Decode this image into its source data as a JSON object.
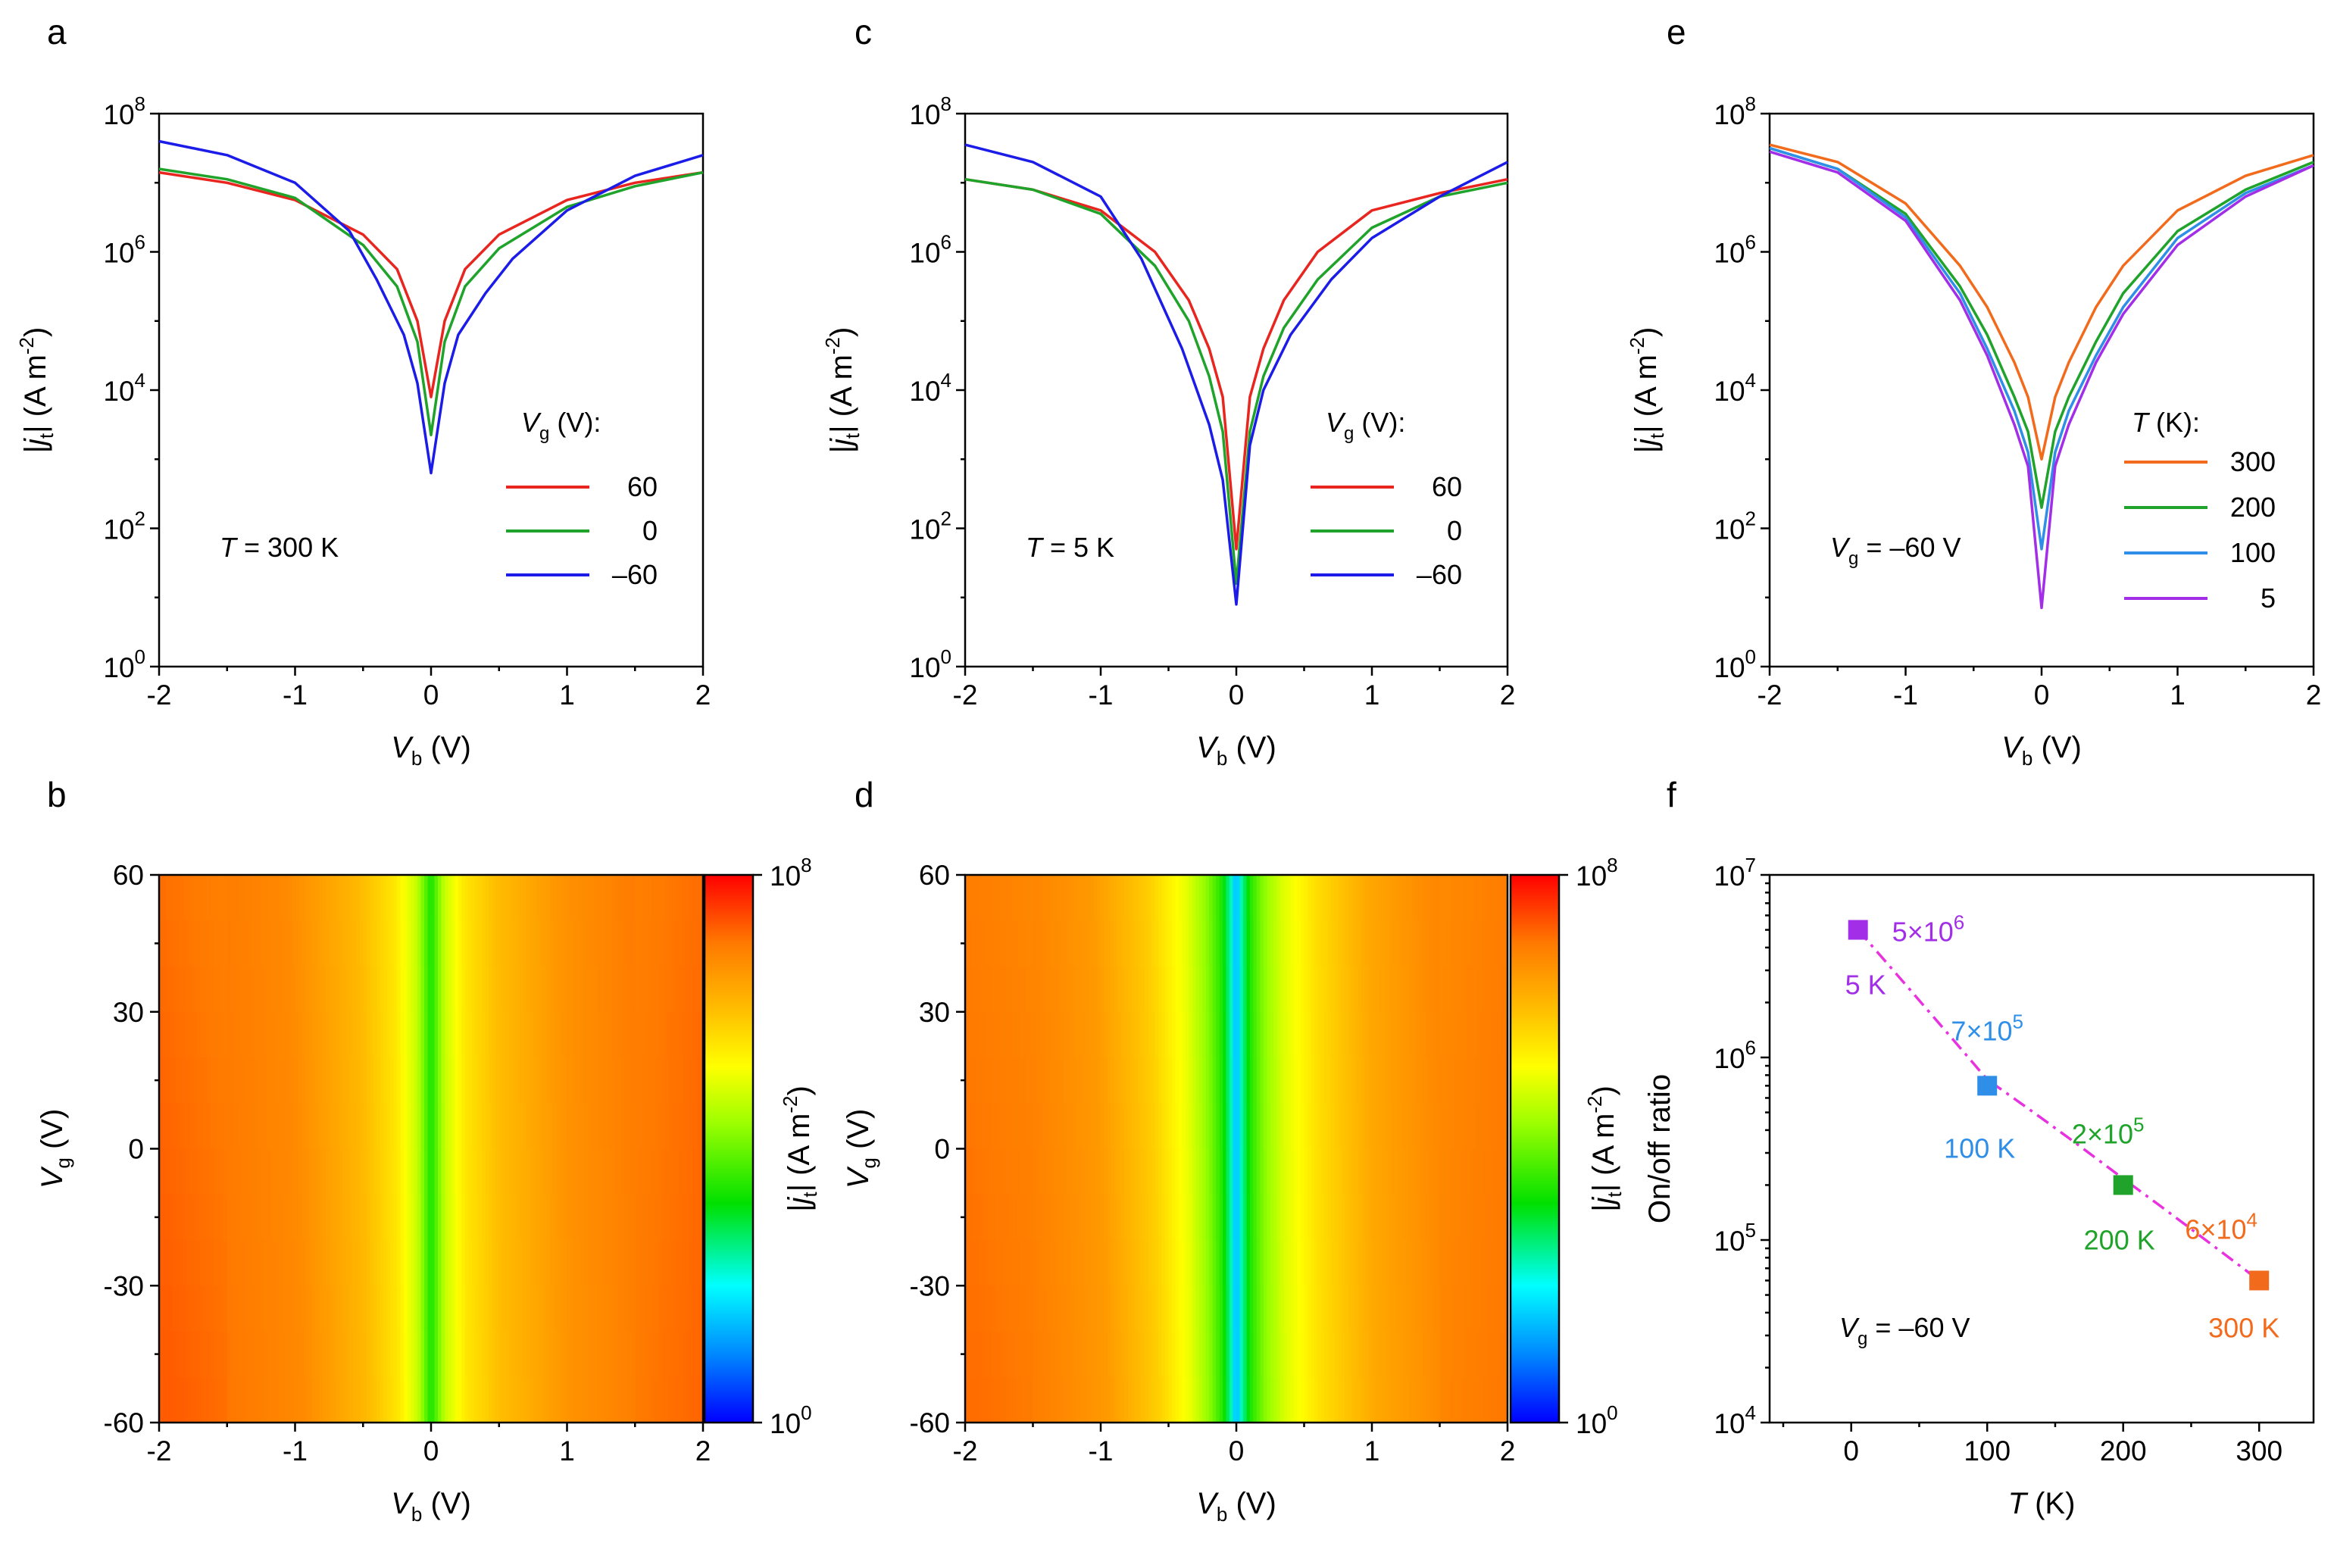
{
  "chart_data": [
    {
      "panel": "a",
      "type": "line",
      "title": "",
      "xlabel": "V_b (V)",
      "ylabel": "|j_t| (A m^-2)",
      "xlim": [
        -2,
        2
      ],
      "ylim_log10": [
        0,
        8
      ],
      "x_ticks": [
        -2,
        -1,
        0,
        1,
        2
      ],
      "y_ticks_exp": [
        0,
        2,
        4,
        6,
        8
      ],
      "legend_title": "V_g (V):",
      "annotation": "T = 300 K",
      "series": [
        {
          "name": "60",
          "color": "#e8251e",
          "x": [
            -2,
            -1.5,
            -1,
            -0.5,
            -0.25,
            -0.1,
            0,
            0.1,
            0.25,
            0.5,
            1,
            1.5,
            2
          ],
          "log10_y": [
            7.15,
            7.0,
            6.75,
            6.25,
            5.75,
            5.0,
            3.9,
            5.0,
            5.75,
            6.25,
            6.75,
            7.0,
            7.15
          ]
        },
        {
          "name": "0",
          "color": "#1fa32a",
          "x": [
            -2,
            -1.5,
            -1,
            -0.5,
            -0.25,
            -0.1,
            0,
            0.1,
            0.25,
            0.5,
            1,
            1.5,
            2
          ],
          "log10_y": [
            7.2,
            7.05,
            6.78,
            6.1,
            5.5,
            4.7,
            3.35,
            4.7,
            5.5,
            6.05,
            6.65,
            6.95,
            7.15
          ]
        },
        {
          "name": "–60",
          "color": "#1c1ce8",
          "x": [
            -2,
            -1.5,
            -1,
            -0.6,
            -0.4,
            -0.2,
            -0.1,
            0,
            0.1,
            0.2,
            0.4,
            0.6,
            1,
            1.5,
            2
          ],
          "log10_y": [
            7.6,
            7.4,
            7.0,
            6.3,
            5.6,
            4.8,
            4.1,
            2.8,
            4.1,
            4.8,
            5.4,
            5.9,
            6.6,
            7.1,
            7.4
          ]
        }
      ]
    },
    {
      "panel": "c",
      "type": "line",
      "title": "",
      "xlabel": "V_b (V)",
      "ylabel": "|j_t| (A m^-2)",
      "xlim": [
        -2,
        2
      ],
      "ylim_log10": [
        0,
        8
      ],
      "x_ticks": [
        -2,
        -1,
        0,
        1,
        2
      ],
      "y_ticks_exp": [
        0,
        2,
        4,
        6,
        8
      ],
      "legend_title": "V_g (V):",
      "annotation": "T = 5 K",
      "series": [
        {
          "name": "60",
          "color": "#e8251e",
          "x": [
            -2,
            -1.5,
            -1,
            -0.6,
            -0.35,
            -0.2,
            -0.1,
            0,
            0.1,
            0.2,
            0.35,
            0.6,
            1,
            1.5,
            2
          ],
          "log10_y": [
            7.05,
            6.9,
            6.6,
            6.0,
            5.3,
            4.6,
            3.9,
            1.7,
            3.9,
            4.6,
            5.3,
            6.0,
            6.6,
            6.85,
            7.05
          ]
        },
        {
          "name": "0",
          "color": "#1fa32a",
          "x": [
            -2,
            -1.5,
            -1,
            -0.6,
            -0.35,
            -0.2,
            -0.1,
            0,
            0.1,
            0.2,
            0.35,
            0.6,
            1,
            1.5,
            2
          ],
          "log10_y": [
            7.05,
            6.9,
            6.55,
            5.8,
            5.0,
            4.2,
            3.4,
            1.2,
            3.4,
            4.2,
            4.9,
            5.6,
            6.35,
            6.8,
            7.0
          ]
        },
        {
          "name": "–60",
          "color": "#1c1ce8",
          "x": [
            -2,
            -1.5,
            -1,
            -0.7,
            -0.4,
            -0.2,
            -0.1,
            0,
            0.1,
            0.2,
            0.4,
            0.7,
            1,
            1.5,
            2
          ],
          "log10_y": [
            7.55,
            7.3,
            6.8,
            5.9,
            4.6,
            3.5,
            2.7,
            0.9,
            3.2,
            4.0,
            4.8,
            5.6,
            6.2,
            6.8,
            7.3
          ]
        }
      ]
    },
    {
      "panel": "e",
      "type": "line",
      "title": "",
      "xlabel": "V_b (V)",
      "ylabel": "|j_t| (A m^-2)",
      "xlim": [
        -2,
        2
      ],
      "ylim_log10": [
        0,
        8
      ],
      "x_ticks": [
        -2,
        -1,
        0,
        1,
        2
      ],
      "y_ticks_exp": [
        0,
        2,
        4,
        6,
        8
      ],
      "legend_title": "T (K):",
      "annotation": "V_g = –60 V",
      "series": [
        {
          "name": "300",
          "color": "#f26b1d",
          "x": [
            -2,
            -1.5,
            -1,
            -0.6,
            -0.4,
            -0.2,
            -0.1,
            0,
            0.1,
            0.2,
            0.4,
            0.6,
            1,
            1.5,
            2
          ],
          "log10_y": [
            7.55,
            7.3,
            6.7,
            5.8,
            5.2,
            4.4,
            3.9,
            3.0,
            3.9,
            4.4,
            5.2,
            5.8,
            6.6,
            7.1,
            7.4
          ]
        },
        {
          "name": "200",
          "color": "#1fa32a",
          "x": [
            -2,
            -1.5,
            -1,
            -0.6,
            -0.4,
            -0.2,
            -0.1,
            0,
            0.1,
            0.2,
            0.4,
            0.6,
            1,
            1.5,
            2
          ],
          "log10_y": [
            7.5,
            7.2,
            6.55,
            5.5,
            4.8,
            3.9,
            3.4,
            2.3,
            3.4,
            3.9,
            4.7,
            5.4,
            6.3,
            6.9,
            7.3
          ]
        },
        {
          "name": "100",
          "color": "#2f8fe8",
          "x": [
            -2,
            -1.5,
            -1,
            -0.6,
            -0.4,
            -0.2,
            -0.1,
            0,
            0.1,
            0.2,
            0.4,
            0.6,
            1,
            1.5,
            2
          ],
          "log10_y": [
            7.5,
            7.2,
            6.5,
            5.4,
            4.6,
            3.7,
            3.1,
            1.7,
            3.1,
            3.7,
            4.5,
            5.2,
            6.2,
            6.85,
            7.25
          ]
        },
        {
          "name": "5",
          "color": "#a22ee8",
          "x": [
            -2,
            -1.5,
            -1,
            -0.6,
            -0.4,
            -0.2,
            -0.1,
            0,
            0.1,
            0.2,
            0.4,
            0.6,
            1,
            1.5,
            2
          ],
          "log10_y": [
            7.45,
            7.15,
            6.45,
            5.3,
            4.5,
            3.5,
            2.9,
            0.85,
            2.9,
            3.5,
            4.4,
            5.1,
            6.1,
            6.8,
            7.25
          ]
        }
      ]
    },
    {
      "panel": "b",
      "type": "heatmap",
      "xlabel": "V_b (V)",
      "ylabel": "V_g (V)",
      "xlim": [
        -2,
        2
      ],
      "ylim": [
        -60,
        60
      ],
      "x_ticks": [
        -2,
        -1,
        0,
        1,
        2
      ],
      "y_ticks": [
        60,
        30,
        0,
        -30,
        -60
      ],
      "colorbar_label": "|j_t| (A m^-2)",
      "colorbar_range_exp": [
        0,
        8
      ],
      "profile": {
        "x": [
          -2,
          -1.5,
          -1,
          -0.5,
          -0.25,
          -0.1,
          0,
          0.1,
          0.25,
          0.5,
          1,
          1.5,
          2
        ],
        "log10_j": [
          7.2,
          7.0,
          6.78,
          6.1,
          5.5,
          4.7,
          3.35,
          4.7,
          5.5,
          6.05,
          6.65,
          6.95,
          7.15
        ]
      }
    },
    {
      "panel": "d",
      "type": "heatmap",
      "xlabel": "V_b (V)",
      "ylabel": "V_g (V)",
      "xlim": [
        -2,
        2
      ],
      "ylim": [
        -60,
        60
      ],
      "x_ticks": [
        -2,
        -1,
        0,
        1,
        2
      ],
      "y_ticks": [
        60,
        30,
        0,
        -30,
        -60
      ],
      "colorbar_label": "|j_t| (A m^-2)",
      "colorbar_range_exp": [
        0,
        8
      ],
      "profile": {
        "x": [
          -2,
          -1.5,
          -1,
          -0.6,
          -0.35,
          -0.2,
          -0.1,
          -0.03,
          0,
          0.03,
          0.1,
          0.2,
          0.35,
          0.6,
          1,
          1.5,
          2
        ],
        "log10_j": [
          7.05,
          6.9,
          6.55,
          5.8,
          5.0,
          4.2,
          3.4,
          2.2,
          1.2,
          2.2,
          3.4,
          4.2,
          4.9,
          5.6,
          6.35,
          6.8,
          7.0
        ]
      }
    },
    {
      "panel": "f",
      "type": "scatter",
      "xlabel": "T (K)",
      "ylabel": "On/off ratio",
      "xlim": [
        -60,
        340
      ],
      "ylim_log10": [
        4,
        7
      ],
      "x_ticks": [
        0,
        100,
        200,
        300
      ],
      "y_ticks_exp": [
        4,
        5,
        6,
        7
      ],
      "annotation": "V_g = –60 V",
      "points": [
        {
          "T": 5,
          "ratio": 5000000,
          "color": "#a22ee8",
          "label_T": "5 K",
          "mantissa": "5",
          "exp": "6"
        },
        {
          "T": 100,
          "ratio": 700000,
          "color": "#2f8fe8",
          "label_T": "100 K",
          "mantissa": "7",
          "exp": "5"
        },
        {
          "T": 200,
          "ratio": 200000,
          "color": "#1fa32a",
          "label_T": "200 K",
          "mantissa": "2",
          "exp": "5"
        },
        {
          "T": 300,
          "ratio": 60000,
          "color": "#f26b1d",
          "label_T": "300 K",
          "mantissa": "6",
          "exp": "4"
        }
      ],
      "fit_color": "#e832e0"
    }
  ]
}
